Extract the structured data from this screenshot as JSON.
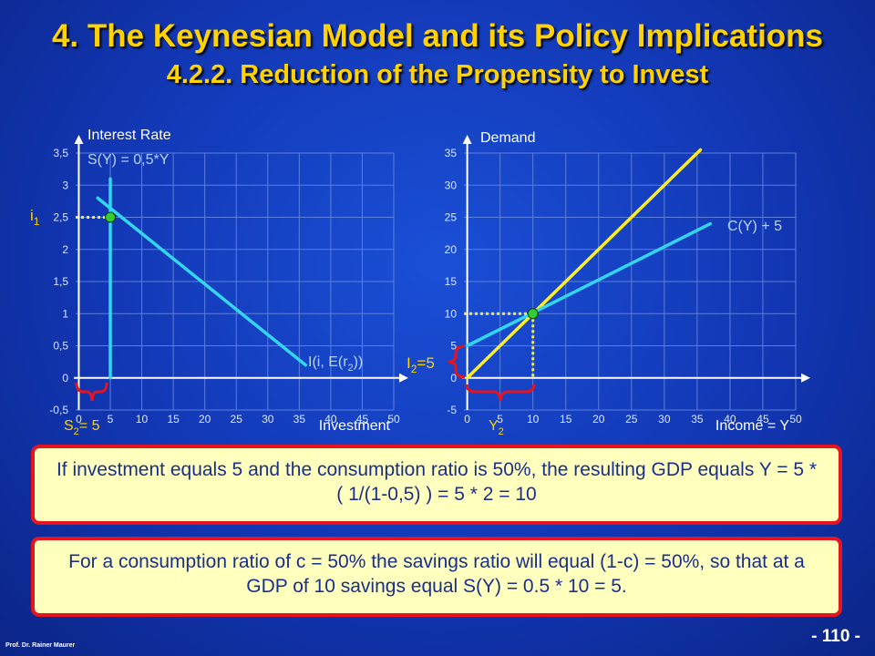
{
  "title": "4. The Keynesian Model and its Policy Implications",
  "subtitle": "4.2.2. Reduction of the Propensity to Invest",
  "chart_data": [
    {
      "type": "line",
      "ylabel": "Interest Rate",
      "xlabel": "Investment",
      "xlim": [
        -0.5,
        50
      ],
      "ylim": [
        -0.5,
        3.5
      ],
      "xticks": [
        0,
        5,
        10,
        15,
        20,
        25,
        30,
        35,
        40,
        45,
        50
      ],
      "yticks": [
        -0.5,
        0,
        0.5,
        1,
        1.5,
        2,
        2.5,
        3,
        3.5
      ],
      "ytick_labels": [
        "-0,5",
        "0",
        "0,5",
        "1",
        "1,5",
        "2",
        "2,5",
        "3",
        "3,5"
      ],
      "grid": true,
      "series": [
        {
          "name": "S(Y) = 0,5*Y",
          "x": [
            5,
            5
          ],
          "y": [
            0,
            3.1
          ]
        },
        {
          "name": "I(i, E(r2))",
          "x": [
            3,
            36
          ],
          "y": [
            2.8,
            0.2
          ]
        }
      ],
      "equilibrium": {
        "x": 5,
        "y": 2.5
      },
      "annotations": {
        "rate_label": "i",
        "rate_sub": "1",
        "savings_label_a": "S",
        "savings_sub": "2",
        "savings_label_b": "= 5"
      }
    },
    {
      "type": "line",
      "ylabel": "Demand",
      "xlabel": "Income = Y",
      "xlim": [
        -0.5,
        50
      ],
      "ylim": [
        -5,
        35
      ],
      "xticks": [
        0,
        5,
        10,
        15,
        20,
        25,
        30,
        35,
        40,
        45,
        50
      ],
      "yticks": [
        -5,
        0,
        5,
        10,
        15,
        20,
        25,
        30,
        35
      ],
      "grid": true,
      "series": [
        {
          "name": "45-degree",
          "x": [
            0,
            35.5
          ],
          "y": [
            0,
            35.5
          ]
        },
        {
          "name": "C(Y) + 5",
          "x": [
            0,
            37
          ],
          "y": [
            5,
            24
          ]
        }
      ],
      "equilibrium": {
        "x": 10,
        "y": 10
      },
      "annotations": {
        "investment_label_a": "I",
        "investment_sub": "2",
        "investment_label_b": "=5",
        "income_label": "Y",
        "income_sub": "2"
      }
    }
  ],
  "box1": "If investment equals 5 and the consumption ratio is 50%, the resulting GDP equals Y = 5 * ( 1/(1-0,5) ) = 5 * 2 = 10",
  "box2": "For a consumption ratio of c = 50% the savings ratio will equal (1-c) = 50%, so that at a GDP of 10 savings equal S(Y) = 0.5 * 10 = 5.",
  "footer": "Prof. Dr. Rainer Maurer",
  "page": "- 110 -",
  "colors": {
    "accent": "#ffd200",
    "line": "#33d6f0",
    "diag": "#ffee22",
    "point": "#33cc33",
    "brace": "#e5141e"
  }
}
